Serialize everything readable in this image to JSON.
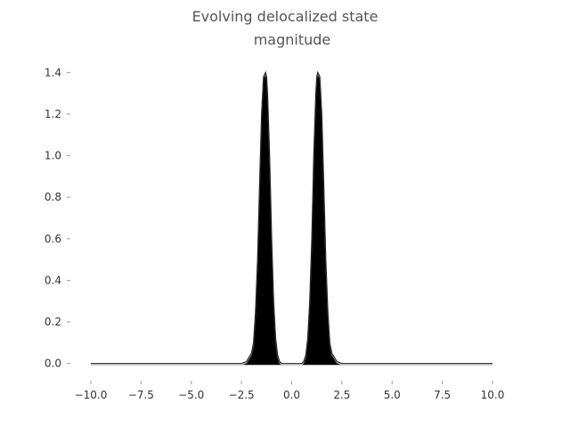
{
  "chart_data": {
    "type": "line",
    "title_line1": "Evolving delocalized state",
    "title_line2": "magnitude",
    "xlabel": "",
    "ylabel": "",
    "xlim": [
      -10.0,
      10.0
    ],
    "ylim": [
      -0.07,
      1.47
    ],
    "x_ticks": [
      -10.0,
      -7.5,
      -5.0,
      -2.5,
      0.0,
      2.5,
      5.0,
      7.5,
      10.0
    ],
    "x_tick_labels": [
      "−10.0",
      "−7.5",
      "−5.0",
      "−2.5",
      "0.0",
      "2.5",
      "5.0",
      "7.5",
      "10.0"
    ],
    "y_ticks": [
      0.0,
      0.2,
      0.4,
      0.6,
      0.8,
      1.0,
      1.2,
      1.4
    ],
    "y_tick_labels": [
      "0.0",
      "0.2",
      "0.4",
      "0.6",
      "0.8",
      "1.0",
      "1.2",
      "1.4"
    ],
    "grid": false,
    "series": [
      {
        "x": [
          -10.0,
          -3.0,
          -2.5,
          -2.25,
          -2.0,
          -1.9,
          -1.8,
          -1.7,
          -1.6,
          -1.5,
          -1.4,
          -1.3,
          -1.25,
          -1.2,
          -1.1,
          -1.0,
          -0.9,
          -0.8,
          -0.7,
          -0.6,
          -0.5,
          -0.25,
          0.0,
          0.25,
          0.5,
          0.6,
          0.7,
          0.8,
          0.9,
          1.0,
          1.1,
          1.2,
          1.25,
          1.3,
          1.4,
          1.5,
          1.6,
          1.7,
          1.8,
          1.9,
          2.0,
          2.25,
          2.5,
          3.0,
          10.0
        ],
        "y": [
          0.0,
          0.0,
          0.0,
          0.01,
          0.05,
          0.1,
          0.25,
          0.5,
          0.85,
          1.2,
          1.38,
          1.4,
          1.38,
          1.3,
          1.0,
          0.6,
          0.3,
          0.12,
          0.04,
          0.01,
          0.0,
          0.0,
          0.0,
          0.0,
          0.0,
          0.01,
          0.04,
          0.12,
          0.3,
          0.6,
          1.0,
          1.3,
          1.38,
          1.4,
          1.38,
          1.2,
          0.85,
          0.5,
          0.25,
          0.1,
          0.05,
          0.01,
          0.0,
          0.0,
          0.0
        ]
      }
    ]
  }
}
